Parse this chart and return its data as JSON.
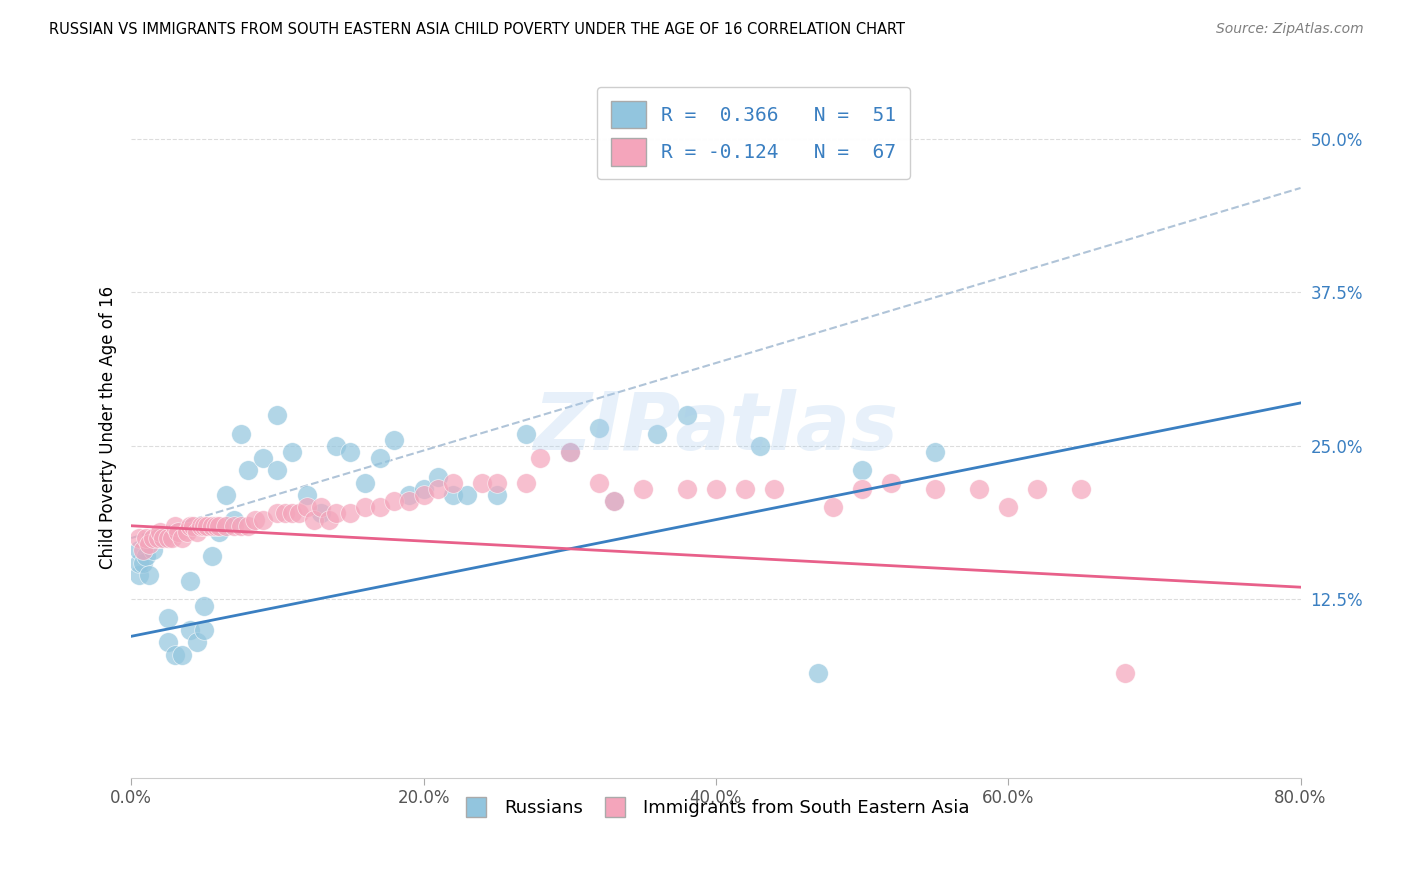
{
  "title": "RUSSIAN VS IMMIGRANTS FROM SOUTH EASTERN ASIA CHILD POVERTY UNDER THE AGE OF 16 CORRELATION CHART",
  "source": "Source: ZipAtlas.com",
  "ylabel": "Child Poverty Under the Age of 16",
  "xlim": [
    0.0,
    0.8
  ],
  "ylim": [
    -0.02,
    0.55
  ],
  "yticks": [
    0.125,
    0.25,
    0.375,
    0.5
  ],
  "ytick_labels": [
    "12.5%",
    "25.0%",
    "37.5%",
    "50.0%"
  ],
  "xticks": [
    0.0,
    0.2,
    0.4,
    0.6,
    0.8
  ],
  "xtick_labels": [
    "0.0%",
    "20.0%",
    "40.0%",
    "60.0%",
    "80.0%"
  ],
  "legend_labels": [
    "Russians",
    "Immigrants from South Eastern Asia"
  ],
  "legend_R": [
    0.366,
    -0.124
  ],
  "legend_N": [
    51,
    67
  ],
  "blue_color": "#92c5de",
  "pink_color": "#f4a5bb",
  "blue_line_color": "#3a7fc1",
  "pink_line_color": "#e8608a",
  "gray_line_color": "#b0c4d8",
  "watermark": "ZIPatlas",
  "blue_line_x0": 0.0,
  "blue_line_y0": 0.095,
  "blue_line_x1": 0.8,
  "blue_line_y1": 0.285,
  "pink_line_x0": 0.0,
  "pink_line_y0": 0.185,
  "pink_line_x1": 0.8,
  "pink_line_y1": 0.135,
  "gray_line_x0": 0.0,
  "gray_line_y0": 0.175,
  "gray_line_x1": 0.8,
  "gray_line_y1": 0.46,
  "russians_x": [
    0.005,
    0.005,
    0.005,
    0.008,
    0.01,
    0.012,
    0.015,
    0.018,
    0.02,
    0.025,
    0.025,
    0.03,
    0.035,
    0.04,
    0.04,
    0.045,
    0.05,
    0.05,
    0.055,
    0.06,
    0.065,
    0.07,
    0.075,
    0.08,
    0.09,
    0.1,
    0.1,
    0.11,
    0.12,
    0.13,
    0.14,
    0.15,
    0.16,
    0.17,
    0.18,
    0.19,
    0.2,
    0.21,
    0.22,
    0.23,
    0.25,
    0.27,
    0.3,
    0.32,
    0.33,
    0.36,
    0.38,
    0.43,
    0.47,
    0.5,
    0.55
  ],
  "russians_y": [
    0.145,
    0.155,
    0.165,
    0.155,
    0.16,
    0.145,
    0.165,
    0.175,
    0.175,
    0.09,
    0.11,
    0.08,
    0.08,
    0.14,
    0.1,
    0.09,
    0.1,
    0.12,
    0.16,
    0.18,
    0.21,
    0.19,
    0.26,
    0.23,
    0.24,
    0.23,
    0.275,
    0.245,
    0.21,
    0.195,
    0.25,
    0.245,
    0.22,
    0.24,
    0.255,
    0.21,
    0.215,
    0.225,
    0.21,
    0.21,
    0.21,
    0.26,
    0.245,
    0.265,
    0.205,
    0.26,
    0.275,
    0.25,
    0.065,
    0.23,
    0.245
  ],
  "asia_x": [
    0.005,
    0.008,
    0.01,
    0.012,
    0.015,
    0.018,
    0.02,
    0.022,
    0.025,
    0.028,
    0.03,
    0.032,
    0.035,
    0.038,
    0.04,
    0.042,
    0.045,
    0.048,
    0.05,
    0.052,
    0.055,
    0.058,
    0.06,
    0.065,
    0.07,
    0.075,
    0.08,
    0.085,
    0.09,
    0.1,
    0.105,
    0.11,
    0.115,
    0.12,
    0.125,
    0.13,
    0.135,
    0.14,
    0.15,
    0.16,
    0.17,
    0.18,
    0.19,
    0.2,
    0.21,
    0.22,
    0.24,
    0.25,
    0.27,
    0.28,
    0.3,
    0.32,
    0.33,
    0.35,
    0.38,
    0.4,
    0.42,
    0.44,
    0.48,
    0.5,
    0.52,
    0.55,
    0.58,
    0.6,
    0.62,
    0.65,
    0.68
  ],
  "asia_y": [
    0.175,
    0.165,
    0.175,
    0.17,
    0.175,
    0.175,
    0.18,
    0.175,
    0.175,
    0.175,
    0.185,
    0.18,
    0.175,
    0.18,
    0.185,
    0.185,
    0.18,
    0.185,
    0.185,
    0.185,
    0.185,
    0.185,
    0.185,
    0.185,
    0.185,
    0.185,
    0.185,
    0.19,
    0.19,
    0.195,
    0.195,
    0.195,
    0.195,
    0.2,
    0.19,
    0.2,
    0.19,
    0.195,
    0.195,
    0.2,
    0.2,
    0.205,
    0.205,
    0.21,
    0.215,
    0.22,
    0.22,
    0.22,
    0.22,
    0.24,
    0.245,
    0.22,
    0.205,
    0.215,
    0.215,
    0.215,
    0.215,
    0.215,
    0.2,
    0.215,
    0.22,
    0.215,
    0.215,
    0.2,
    0.215,
    0.215,
    0.065
  ]
}
